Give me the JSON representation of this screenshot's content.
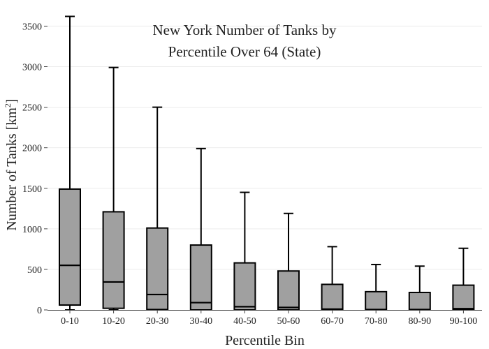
{
  "chart_data": {
    "type": "box",
    "title_line1": "New York Number of Tanks by",
    "title_line2": "Percentile Over 64 (State)",
    "xlabel": "Percentile Bin",
    "ylabel_main": "Number of Tanks  [km",
    "ylabel_sup": "2",
    "ylabel_close": "]",
    "ylim": [
      0,
      3650
    ],
    "yticks": [
      0,
      500,
      1000,
      1500,
      2000,
      2500,
      3000,
      3500
    ],
    "grid": true,
    "colors": {
      "box_fill": "#a0a0a0",
      "box_edge": "#000000",
      "grid": "#ececec"
    },
    "categories": [
      "0-10",
      "10-20",
      "20-30",
      "30-40",
      "40-50",
      "50-60",
      "60-70",
      "70-80",
      "80-90",
      "90-100"
    ],
    "boxes": [
      {
        "whislo": 0,
        "q1": 60,
        "med": 550,
        "q3": 1490,
        "whishi": 3620
      },
      {
        "whislo": 0,
        "q1": 20,
        "med": 345,
        "q3": 1210,
        "whishi": 2990
      },
      {
        "whislo": 0,
        "q1": 5,
        "med": 190,
        "q3": 1010,
        "whishi": 2500
      },
      {
        "whislo": 0,
        "q1": 0,
        "med": 90,
        "q3": 800,
        "whishi": 1990
      },
      {
        "whislo": 0,
        "q1": 0,
        "med": 40,
        "q3": 580,
        "whishi": 1450
      },
      {
        "whislo": 0,
        "q1": 0,
        "med": 30,
        "q3": 480,
        "whishi": 1190
      },
      {
        "whislo": 0,
        "q1": 0,
        "med": 10,
        "q3": 315,
        "whishi": 780
      },
      {
        "whislo": 0,
        "q1": 0,
        "med": 5,
        "q3": 225,
        "whishi": 560
      },
      {
        "whislo": 0,
        "q1": 0,
        "med": 5,
        "q3": 215,
        "whishi": 540
      },
      {
        "whislo": 0,
        "q1": 0,
        "med": 15,
        "q3": 305,
        "whishi": 760
      }
    ]
  }
}
